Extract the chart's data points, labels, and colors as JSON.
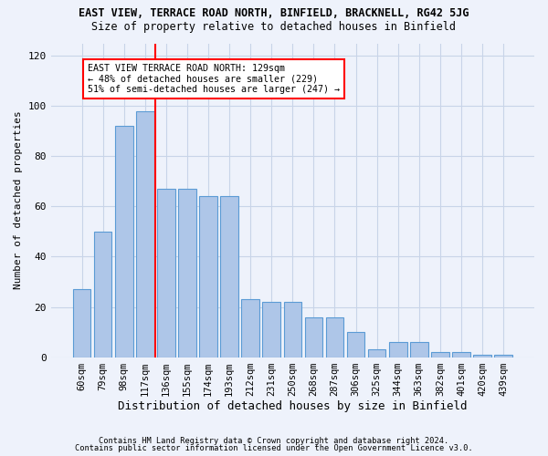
{
  "title1": "EAST VIEW, TERRACE ROAD NORTH, BINFIELD, BRACKNELL, RG42 5JG",
  "title2": "Size of property relative to detached houses in Binfield",
  "xlabel": "Distribution of detached houses by size in Binfield",
  "ylabel": "Number of detached properties",
  "footer1": "Contains HM Land Registry data © Crown copyright and database right 2024.",
  "footer2": "Contains public sector information licensed under the Open Government Licence v3.0.",
  "categories": [
    "60sqm",
    "79sqm",
    "98sqm",
    "117sqm",
    "136sqm",
    "155sqm",
    "174sqm",
    "193sqm",
    "212sqm",
    "231sqm",
    "250sqm",
    "268sqm",
    "287sqm",
    "306sqm",
    "325sqm",
    "344sqm",
    "363sqm",
    "382sqm",
    "401sqm",
    "420sqm",
    "439sqm"
  ],
  "values": [
    27,
    50,
    92,
    98,
    67,
    67,
    64,
    64,
    23,
    22,
    22,
    16,
    16,
    10,
    3,
    6,
    6,
    2,
    2,
    1,
    1
  ],
  "bar_color": "#aec6e8",
  "bar_edge_color": "#5b9bd5",
  "annotation_text_line1": "EAST VIEW TERRACE ROAD NORTH: 129sqm",
  "annotation_text_line2": "← 48% of detached houses are smaller (229)",
  "annotation_text_line3": "51% of semi-detached houses are larger (247) →",
  "annotation_box_color": "white",
  "annotation_box_edge": "red",
  "red_line_color": "red",
  "red_line_x": 3.5,
  "ylim": [
    0,
    125
  ],
  "yticks": [
    0,
    20,
    40,
    60,
    80,
    100,
    120
  ],
  "grid_color": "#c8d4e8",
  "bg_color": "#eef2fb"
}
